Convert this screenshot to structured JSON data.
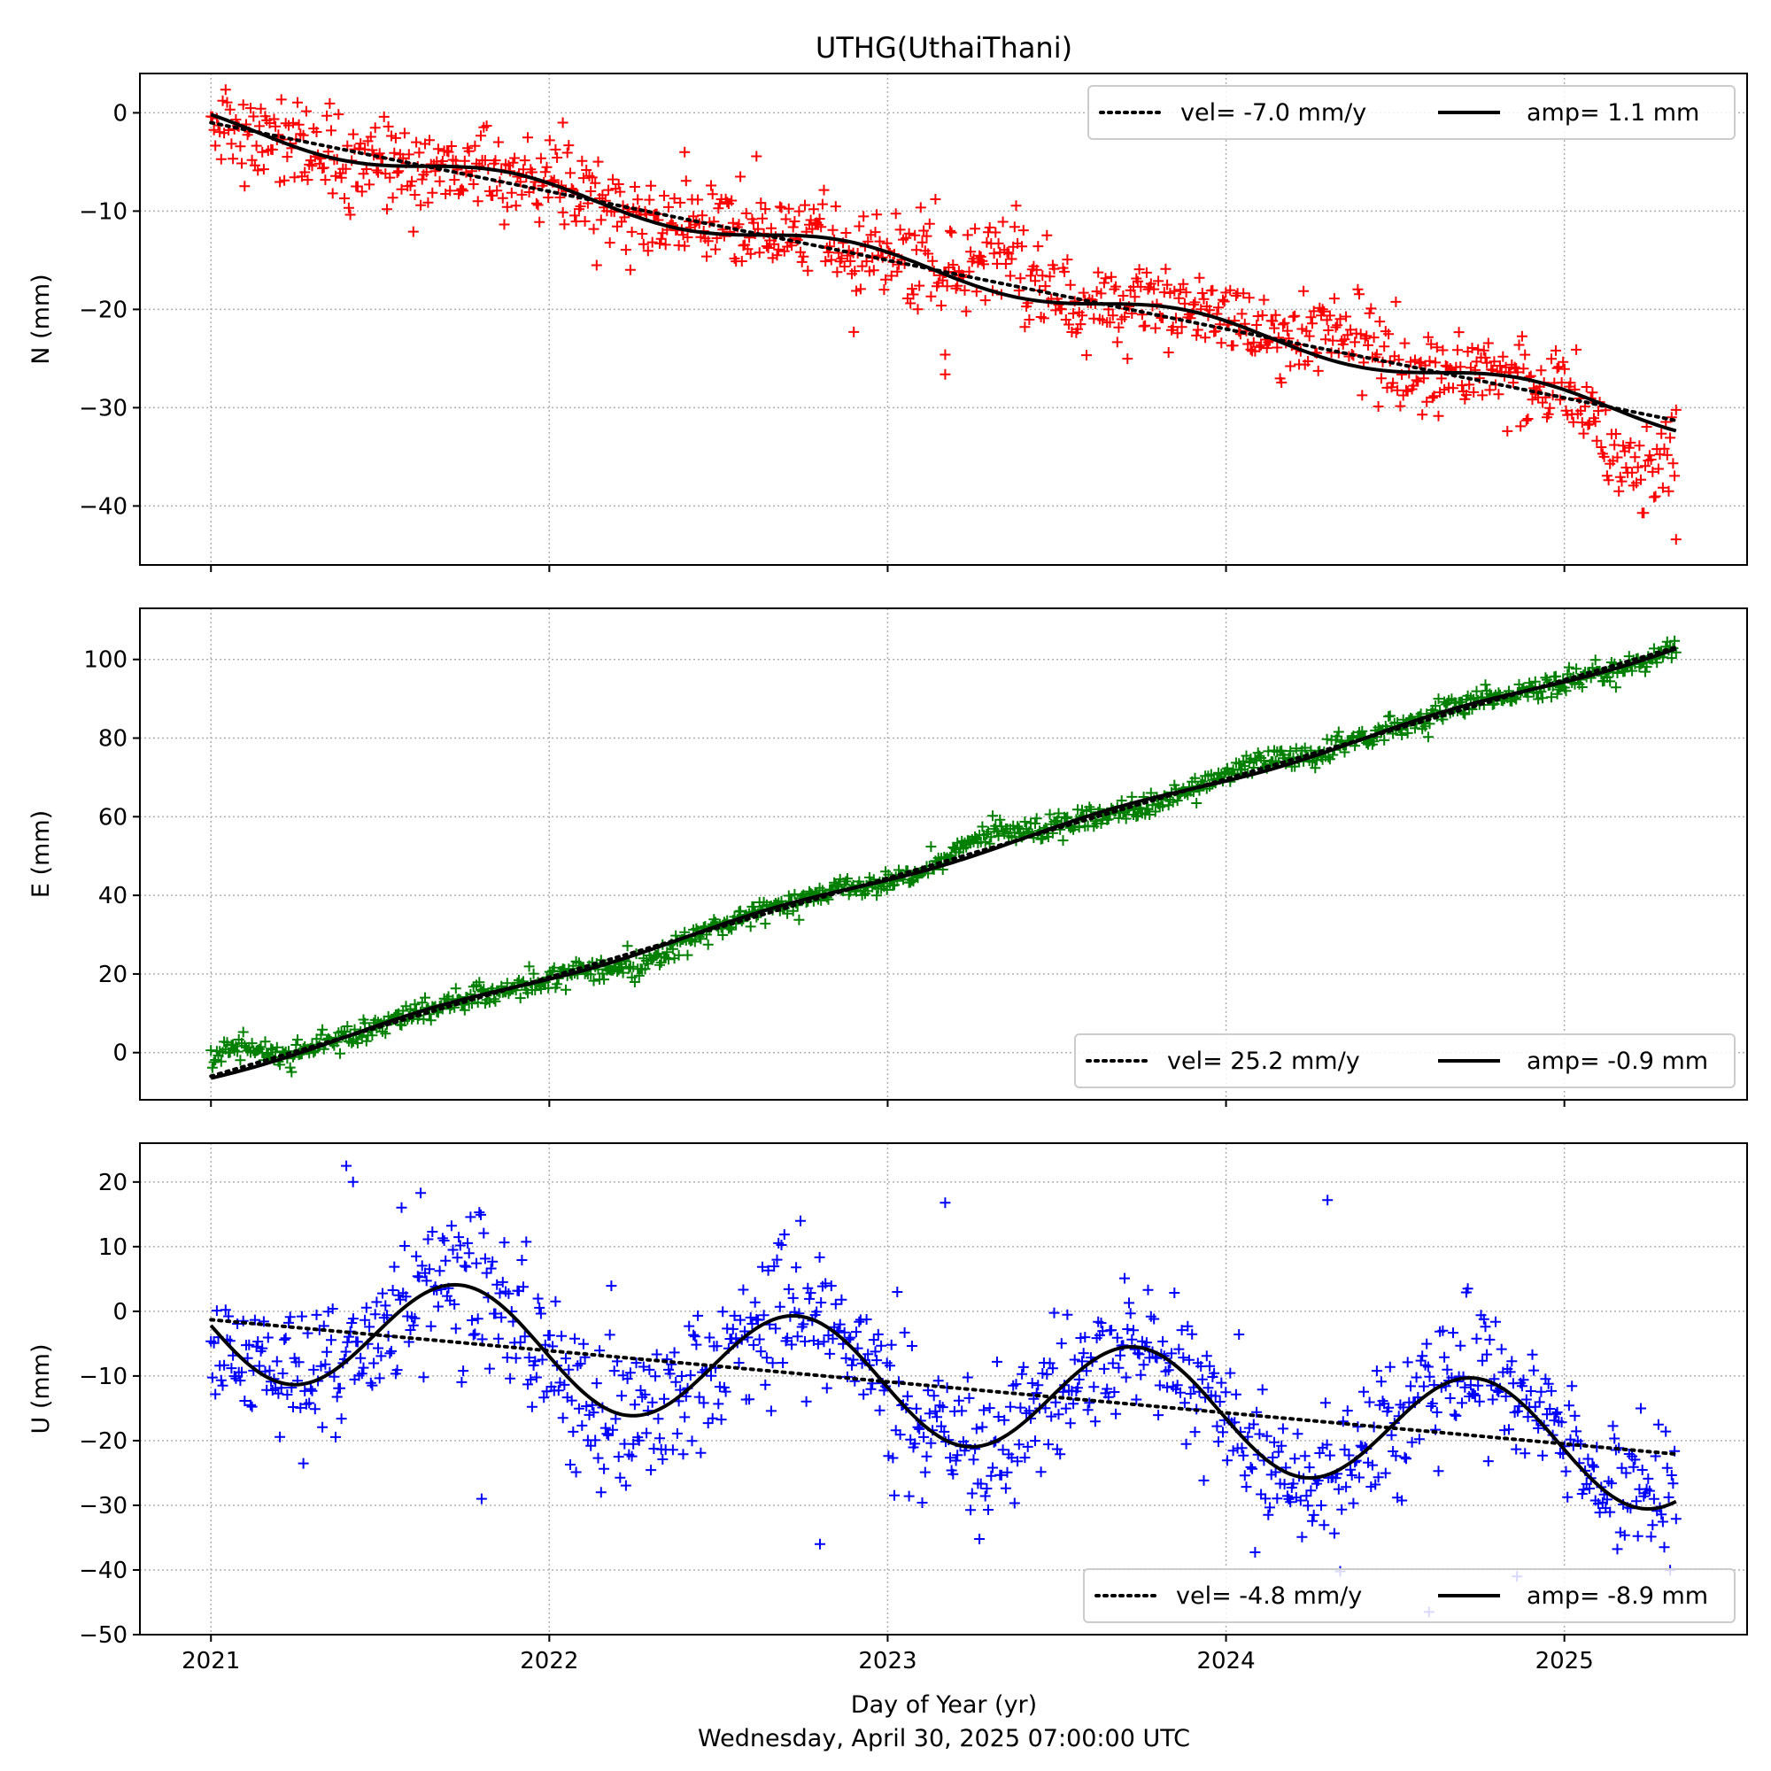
{
  "title": "UTHG(UthaiThani)",
  "xlabel": "Day of Year (yr)",
  "footer": "Wednesday, April 30, 2025 07:00:00 UTC",
  "chart_data": [
    {
      "type": "scatter",
      "component": "N",
      "ylabel": "N (mm)",
      "marker_color": "#ff0000",
      "xlim": [
        2020.79,
        2025.54
      ],
      "ylim": [
        -46,
        4
      ],
      "yticks": [
        0,
        -10,
        -20,
        -30,
        -40
      ],
      "xticks": [
        2021,
        2022,
        2023,
        2024,
        2025
      ],
      "grid": true,
      "legend_position": "top-right",
      "legend": {
        "vel_label": "vel= -7.0 mm/y",
        "amp_label": "amp= 1.1 mm"
      },
      "model": {
        "start": 2021.0,
        "end": 2025.33,
        "intercept": -1.0,
        "velocity": -7.0,
        "amplitude": 1.1,
        "phase": 2.3
      },
      "observations": {
        "start": 2021.0,
        "end": 2025.33,
        "count": 1000,
        "scatter": 2.2,
        "deviations": [
          [
            2022.55,
            1.0
          ],
          [
            2023.35,
            4.0
          ],
          [
            2024.35,
            3.5
          ],
          [
            2025.22,
            -6.0
          ]
        ],
        "outliers": [
          [
            2022.9,
            -22.3
          ],
          [
            2023.17,
            -24.6
          ],
          [
            2023.17,
            -26.6
          ],
          [
            2025.33,
            -43.4
          ],
          [
            2022.04,
            -1.0
          ],
          [
            2022.4,
            -4.0
          ]
        ]
      },
      "series": [
        {
          "name": "vel= -7.0 mm/y",
          "style": "dotted"
        },
        {
          "name": "amp= 1.1 mm",
          "style": "solid"
        }
      ]
    },
    {
      "type": "scatter",
      "component": "E",
      "ylabel": "E (mm)",
      "marker_color": "#008000",
      "xlim": [
        2020.79,
        2025.54
      ],
      "ylim": [
        -12,
        113
      ],
      "yticks": [
        0,
        20,
        40,
        60,
        80,
        100
      ],
      "xticks": [
        2021,
        2022,
        2023,
        2024,
        2025
      ],
      "grid": true,
      "legend_position": "bottom-right",
      "legend": {
        "vel_label": "vel= 25.2 mm/y",
        "amp_label": "amp= -0.9 mm"
      },
      "model": {
        "start": 2021.0,
        "end": 2025.33,
        "intercept": -6.0,
        "velocity": 25.2,
        "amplitude": -0.9,
        "phase": 0.6
      },
      "observations": {
        "start": 2021.0,
        "end": 2025.33,
        "count": 1000,
        "scatter": 1.5,
        "deviations": [
          [
            2021.05,
            6.0
          ],
          [
            2022.3,
            -3.0
          ],
          [
            2023.3,
            4.0
          ],
          [
            2023.75,
            -2.0
          ],
          [
            2024.1,
            3.0
          ]
        ],
        "outliers": []
      },
      "series": [
        {
          "name": "vel= 25.2 mm/y",
          "style": "dotted"
        },
        {
          "name": "amp= -0.9 mm",
          "style": "solid"
        }
      ]
    },
    {
      "type": "scatter",
      "component": "U",
      "ylabel": "U (mm)",
      "marker_color": "#0000ff",
      "xlim": [
        2020.79,
        2025.54
      ],
      "ylim": [
        -50,
        26
      ],
      "yticks": [
        20,
        10,
        0,
        -10,
        -20,
        -30,
        -40,
        -50
      ],
      "xticks": [
        2021,
        2022,
        2023,
        2024,
        2025
      ],
      "grid": true,
      "legend_position": "bottom-right",
      "legend": {
        "vel_label": "vel= -4.8 mm/y",
        "amp_label": "amp= -8.9 mm"
      },
      "model": {
        "start": 2021.0,
        "end": 2025.33,
        "intercept": -1.3,
        "velocity": -4.8,
        "amplitude": -8.9,
        "phase": 0.1
      },
      "observations": {
        "start": 2021.0,
        "end": 2025.33,
        "count": 1000,
        "scatter": 5.5,
        "deviations": [],
        "outliers": [
          [
            2021.4,
            22.5
          ],
          [
            2021.42,
            20.0
          ],
          [
            2023.17,
            16.8
          ],
          [
            2024.3,
            17.2
          ],
          [
            2024.6,
            -46.5
          ],
          [
            2024.86,
            -41.0
          ],
          [
            2021.8,
            -29.0
          ],
          [
            2022.8,
            -36.0
          ]
        ]
      },
      "series": [
        {
          "name": "vel= -4.8 mm/y",
          "style": "dotted"
        },
        {
          "name": "amp= -8.9 mm",
          "style": "solid"
        }
      ]
    }
  ]
}
